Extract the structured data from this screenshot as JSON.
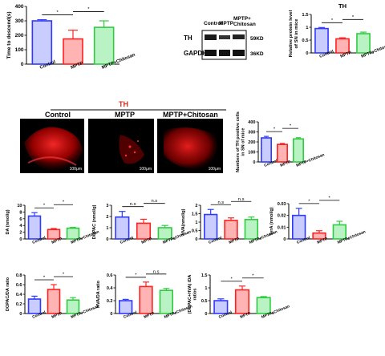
{
  "colors": {
    "control": "#2f39ff",
    "mptp": "#ff2020",
    "chitosan": "#2ecc40",
    "th_title": "#d42b1f"
  },
  "groups": [
    "Control",
    "MPTP",
    "MPTP+Chitosan"
  ],
  "western_blot": {
    "lane_labels": [
      "Control",
      "MPTP",
      "MPTP+\nChitosan"
    ],
    "bands": [
      {
        "label": "TH",
        "size": "59KD"
      },
      {
        "label": "GAPDH",
        "size": "36KD"
      }
    ]
  },
  "histology": {
    "title": "TH",
    "images": [
      {
        "label": "Control",
        "scale": "100μm"
      },
      {
        "label": "MPTP",
        "scale": "100μm"
      },
      {
        "label": "MPTP+Chitosan",
        "scale": "100μm"
      }
    ]
  },
  "chart_data": [
    {
      "id": "time-to-descend",
      "type": "bar",
      "title": "",
      "ylabel": "Time to descend(s)",
      "categories": [
        "Control",
        "MPTP",
        "MPTP+Chitosan"
      ],
      "values": [
        300,
        175,
        255
      ],
      "errors": [
        8,
        60,
        45
      ],
      "ylim": [
        0,
        400
      ],
      "yticks": [
        0,
        100,
        200,
        300,
        400
      ],
      "significance": [
        "*",
        "*"
      ]
    },
    {
      "id": "th-protein",
      "type": "bar",
      "title": "TH",
      "ylabel": "Relative protein level\nof SN in mice",
      "categories": [
        "Control",
        "MPTP",
        "MPTP+Chitosan"
      ],
      "values": [
        0.95,
        0.55,
        0.75
      ],
      "errors": [
        0.04,
        0.04,
        0.06
      ],
      "ylim": [
        0,
        1.5
      ],
      "yticks": [
        0.0,
        0.5,
        1.0,
        1.5
      ],
      "significance": [
        "*",
        "*"
      ]
    },
    {
      "id": "th-cells",
      "type": "bar",
      "title": "",
      "ylabel": "Numbers of TH positive cells\nin SN of mice",
      "categories": [
        "Control",
        "MPTP",
        "MPTP+Chitosan"
      ],
      "values": [
        240,
        175,
        230
      ],
      "errors": [
        15,
        10,
        12
      ],
      "ylim": [
        0,
        400
      ],
      "yticks": [
        0,
        100,
        200,
        300,
        400
      ],
      "significance": [
        "*",
        "*"
      ]
    },
    {
      "id": "da",
      "type": "bar",
      "title": "",
      "ylabel": "DA (nmol/g)",
      "categories": [
        "Control",
        "MPTP",
        "MPTP+Chitosan"
      ],
      "values": [
        6.8,
        2.8,
        3.2
      ],
      "errors": [
        1.0,
        0.3,
        0.25
      ],
      "ylim": [
        0,
        10
      ],
      "yticks": [
        0,
        2,
        4,
        6,
        8,
        10
      ],
      "significance": [
        "*",
        "*"
      ]
    },
    {
      "id": "dopac",
      "type": "bar",
      "title": "",
      "ylabel": "DOPAC (nmol/g)",
      "categories": [
        "Control",
        "MPTP",
        "MPTP+Chitosan"
      ],
      "values": [
        1.95,
        1.4,
        1.0
      ],
      "errors": [
        0.5,
        0.35,
        0.2
      ],
      "ylim": [
        0,
        3
      ],
      "yticks": [
        0,
        1,
        2,
        3
      ],
      "significance": [
        "n.s",
        "n.s"
      ]
    },
    {
      "id": "hva",
      "type": "bar",
      "title": "",
      "ylabel": "HVA(nmol/g)",
      "categories": [
        "Control",
        "MPTP",
        "MPTP+Chitosan"
      ],
      "values": [
        1.45,
        1.1,
        1.15
      ],
      "errors": [
        0.3,
        0.15,
        0.15
      ],
      "ylim": [
        0,
        2
      ],
      "yticks": [
        0.0,
        0.5,
        1.0,
        1.5,
        2.0
      ],
      "significance": [
        "n.s",
        "n.s"
      ]
    },
    {
      "id": "tyra",
      "type": "bar",
      "title": "",
      "ylabel": "TyrA (nmol/g)",
      "categories": [
        "Control",
        "MPTP",
        "MPTP+Chitosan"
      ],
      "values": [
        0.02,
        0.005,
        0.012
      ],
      "errors": [
        0.006,
        0.002,
        0.003
      ],
      "ylim": [
        0,
        0.03
      ],
      "yticks": [
        0.0,
        0.01,
        0.02,
        0.03
      ],
      "significance": [
        "*",
        "*"
      ]
    },
    {
      "id": "dopac-da",
      "type": "bar",
      "title": "",
      "ylabel": "DOPAC/DA ratio",
      "categories": [
        "Control",
        "MPTP",
        "MPTP+Chitosan"
      ],
      "values": [
        0.3,
        0.5,
        0.28
      ],
      "errors": [
        0.06,
        0.1,
        0.05
      ],
      "ylim": [
        0,
        0.8
      ],
      "yticks": [
        0.0,
        0.2,
        0.4,
        0.6,
        0.8
      ],
      "significance": [
        "*",
        "*"
      ]
    },
    {
      "id": "hva-da",
      "type": "bar",
      "title": "",
      "ylabel": "HVA/DA ratio",
      "categories": [
        "Control",
        "MPTP",
        "MPTP+Chitosan"
      ],
      "values": [
        0.2,
        0.42,
        0.36
      ],
      "errors": [
        0.02,
        0.07,
        0.03
      ],
      "ylim": [
        0,
        0.6
      ],
      "yticks": [
        0.0,
        0.2,
        0.4,
        0.6
      ],
      "significance": [
        "*",
        "n.s"
      ]
    },
    {
      "id": "dopac-hva-da",
      "type": "bar",
      "title": "",
      "ylabel": "(DOPAC+HVA) /DA\nratios",
      "categories": [
        "Control",
        "MPTP",
        "MPTP+Chitosan"
      ],
      "values": [
        0.5,
        0.92,
        0.62
      ],
      "errors": [
        0.07,
        0.15,
        0.04
      ],
      "ylim": [
        0,
        1.5
      ],
      "yticks": [
        0.0,
        0.5,
        1.0,
        1.5
      ],
      "significance": [
        "*",
        "*"
      ]
    }
  ]
}
